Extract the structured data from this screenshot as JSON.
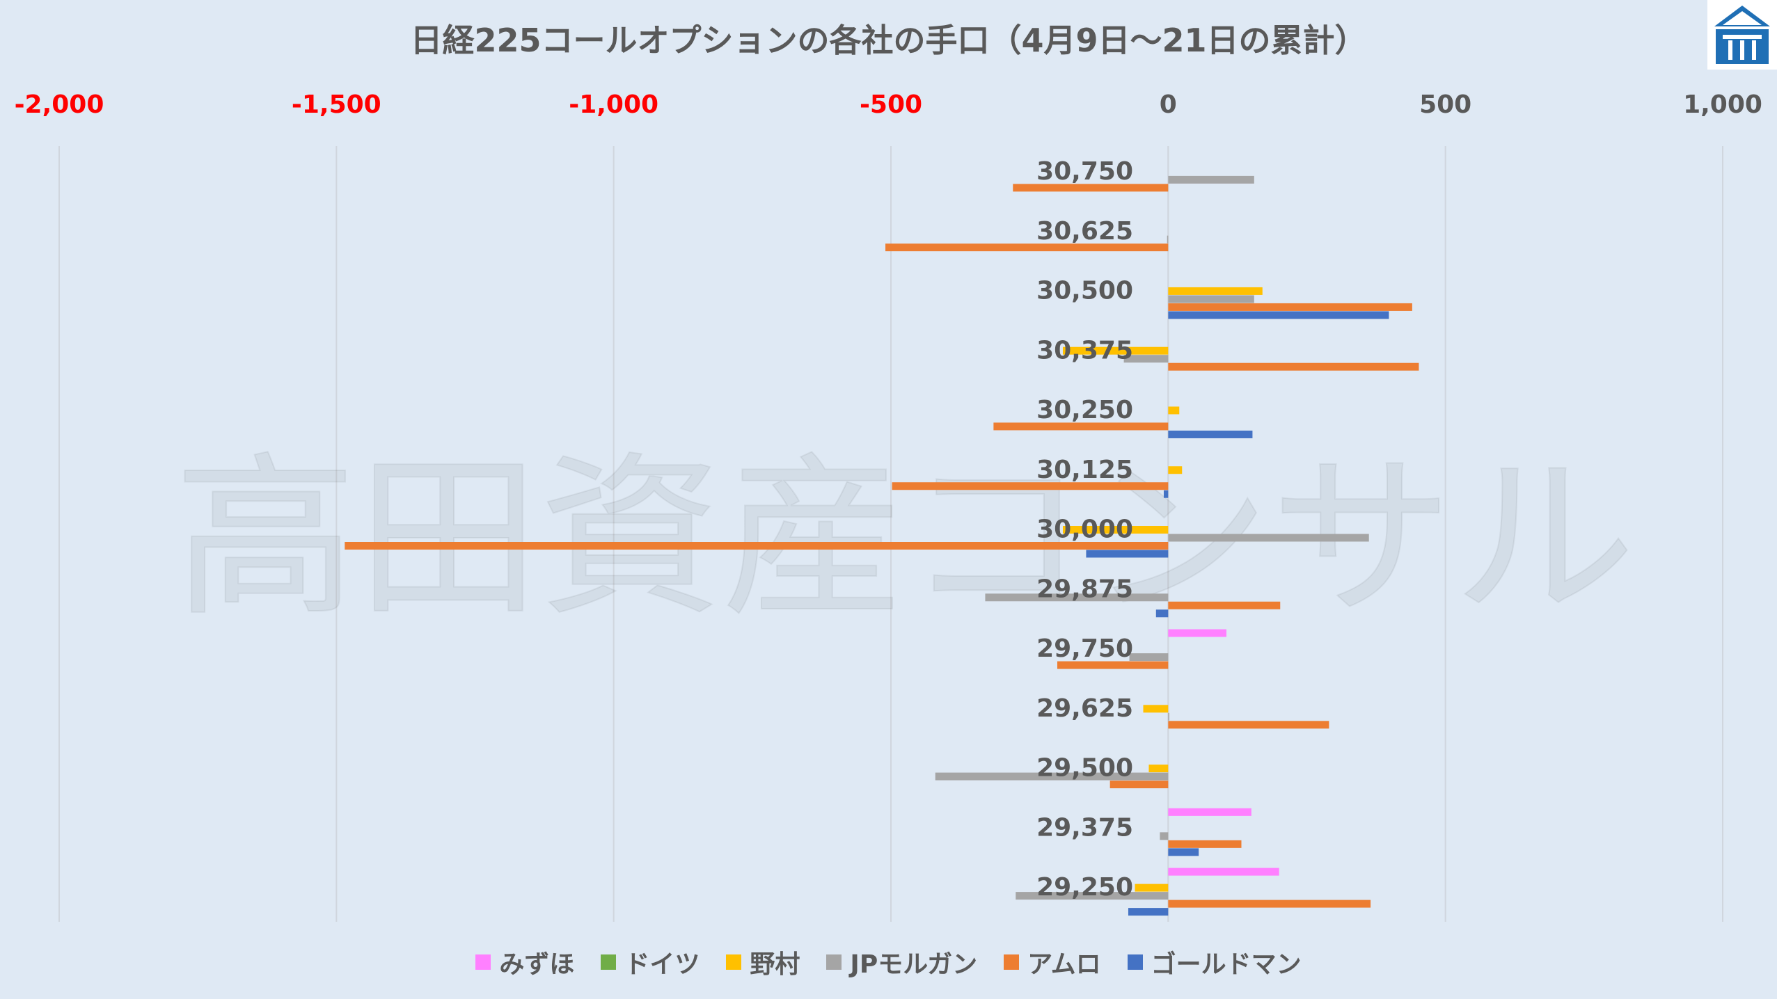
{
  "chart_data": {
    "type": "bar",
    "orientation": "horizontal",
    "title": "日経225コールオプションの各社の手口（4月9日～21日の累計）",
    "watermark": "高田資産コンサル",
    "x_axis": {
      "range": [
        -2000,
        1000
      ],
      "ticks": [
        -2000,
        -1500,
        -1000,
        -500,
        0,
        500,
        1000
      ],
      "tick_labels": [
        "-2,000",
        "-1,500",
        "-1,000",
        "-500",
        "0",
        "500",
        "1,000"
      ],
      "negative_label_color": "#ff0000",
      "positive_label_color": "#595959",
      "position": "top"
    },
    "grid": true,
    "legend_position": "bottom",
    "categories": [
      "30,750",
      "30,625",
      "30,500",
      "30,375",
      "30,250",
      "30,125",
      "30,000",
      "29,875",
      "29,750",
      "29,625",
      "29,500",
      "29,375",
      "29,250"
    ],
    "series": [
      {
        "name": "みずほ",
        "color": "#ff80ff",
        "values": [
          0,
          0,
          0,
          0,
          0,
          0,
          0,
          0,
          105,
          0,
          0,
          150,
          200
        ]
      },
      {
        "name": "ドイツ",
        "color": "#70ad47",
        "values": [
          0,
          0,
          0,
          0,
          0,
          0,
          0,
          0,
          0,
          0,
          0,
          0,
          0
        ]
      },
      {
        "name": "野村",
        "color": "#ffc000",
        "values": [
          0,
          0,
          170,
          -190,
          20,
          25,
          -190,
          0,
          0,
          -45,
          -35,
          0,
          -60
        ]
      },
      {
        "name": "JPモルガン",
        "color": "#a5a5a5",
        "values": [
          155,
          -2,
          155,
          -80,
          0,
          0,
          362,
          -330,
          -70,
          2,
          -420,
          -15,
          -275
        ]
      },
      {
        "name": "アムロ",
        "color": "#ed7d31",
        "values": [
          -280,
          -510,
          440,
          452,
          -315,
          -498,
          -1485,
          202,
          -200,
          290,
          -105,
          132,
          365
        ]
      },
      {
        "name": "ゴールドマン",
        "color": "#4472c4",
        "values": [
          0,
          0,
          398,
          0,
          152,
          -8,
          -148,
          -22,
          0,
          0,
          0,
          55,
          -72
        ]
      }
    ]
  }
}
